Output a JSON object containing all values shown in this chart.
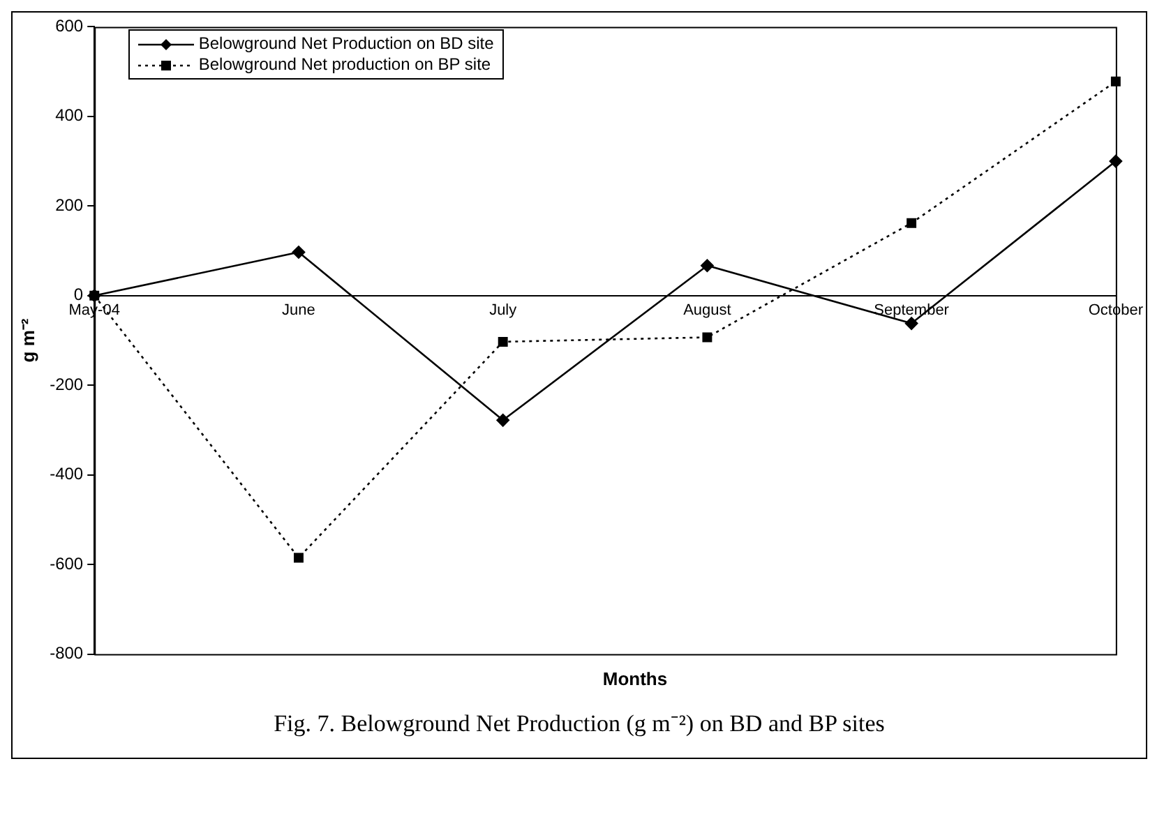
{
  "chart_data": {
    "type": "line",
    "categories": [
      "May-04",
      "June",
      "July",
      "August",
      "September",
      "October"
    ],
    "series": [
      {
        "name": "Belowground Net Production on BD site",
        "color": "#000000",
        "marker": "diamond",
        "line_style": "solid",
        "values": [
          0,
          97,
          -278,
          67,
          -62,
          300
        ]
      },
      {
        "name": "Belowground Net production on BP site",
        "color": "#000000",
        "marker": "square",
        "line_style": "dotted",
        "values": [
          0,
          -585,
          -103,
          -93,
          162,
          478
        ]
      }
    ],
    "ylim": [
      -800,
      600
    ],
    "yticks": [
      -800,
      -600,
      -400,
      -200,
      0,
      200,
      400,
      600
    ],
    "xlabel": "Months",
    "ylabel": "g m⁻²",
    "grid": false,
    "legend": "top left",
    "annotations": [
      "Fig. 7. Belowground Net Production (g m⁻²) on BD and BP sites"
    ]
  }
}
